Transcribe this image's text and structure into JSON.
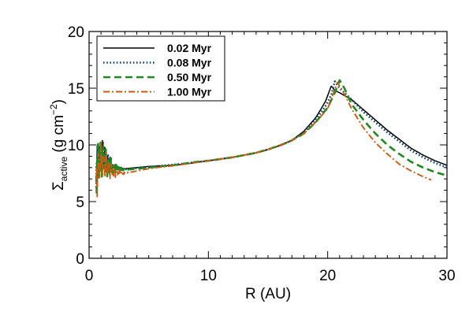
{
  "chart_data": {
    "type": "line",
    "xlabel": "R (AU)",
    "ylabel": {
      "main": "Σ",
      "sub": "active",
      "unit_pre": " (g cm",
      "unit_sup": "−2",
      "unit_post": ")"
    },
    "xlim": [
      0,
      30
    ],
    "ylim": [
      0,
      20
    ],
    "xticks": [
      0,
      10,
      20,
      30
    ],
    "yticks": [
      0,
      5,
      10,
      15,
      20
    ],
    "grid": false,
    "legend_position": "top-left",
    "series": [
      {
        "name": "0.02 Myr",
        "color": "#000000",
        "dash": "solid",
        "noise": {
          "start": 0.6,
          "end": 3.0,
          "amp": 2.2,
          "phase": 0.3
        },
        "points": [
          [
            0.6,
            7.6
          ],
          [
            1.0,
            9.4
          ],
          [
            1.5,
            8.6
          ],
          [
            2,
            8.1
          ],
          [
            3,
            7.9
          ],
          [
            4,
            8.0
          ],
          [
            5,
            8.1
          ],
          [
            6,
            8.15
          ],
          [
            7,
            8.2
          ],
          [
            8,
            8.3
          ],
          [
            9,
            8.45
          ],
          [
            10,
            8.6
          ],
          [
            11,
            8.75
          ],
          [
            12,
            8.9
          ],
          [
            13,
            9.1
          ],
          [
            14,
            9.3
          ],
          [
            15,
            9.6
          ],
          [
            16,
            9.95
          ],
          [
            17,
            10.4
          ],
          [
            18,
            11.2
          ],
          [
            19,
            12.4
          ],
          [
            19.8,
            13.8
          ],
          [
            20.3,
            15.2
          ],
          [
            20.6,
            14.8
          ],
          [
            21,
            14.6
          ],
          [
            22,
            14.0
          ],
          [
            23,
            13.1
          ],
          [
            24,
            12.2
          ],
          [
            25,
            11.3
          ],
          [
            26,
            10.5
          ],
          [
            27,
            9.7
          ],
          [
            28,
            9.1
          ],
          [
            29,
            8.6
          ],
          [
            30,
            8.2
          ]
        ]
      },
      {
        "name": "0.08 Myr",
        "color": "#10436e",
        "dash": "dotted",
        "noise": {
          "start": 0.6,
          "end": 3.2,
          "amp": 2.4,
          "phase": 1.1
        },
        "points": [
          [
            0.6,
            7.7
          ],
          [
            1.0,
            9.2
          ],
          [
            1.5,
            8.5
          ],
          [
            2,
            8.0
          ],
          [
            3,
            7.85
          ],
          [
            4,
            7.95
          ],
          [
            5,
            8.05
          ],
          [
            6,
            8.15
          ],
          [
            7,
            8.25
          ],
          [
            8,
            8.35
          ],
          [
            9,
            8.5
          ],
          [
            10,
            8.6
          ],
          [
            11,
            8.75
          ],
          [
            12,
            8.9
          ],
          [
            13,
            9.1
          ],
          [
            14,
            9.3
          ],
          [
            15,
            9.6
          ],
          [
            16,
            9.95
          ],
          [
            17,
            10.4
          ],
          [
            18,
            11.1
          ],
          [
            19,
            12.2
          ],
          [
            19.8,
            13.4
          ],
          [
            20.3,
            14.4
          ],
          [
            20.6,
            15.6
          ],
          [
            21,
            15.0
          ],
          [
            22,
            14.0
          ],
          [
            23,
            12.9
          ],
          [
            24,
            12.0
          ],
          [
            25,
            11.1
          ],
          [
            26,
            10.3
          ],
          [
            27,
            9.5
          ],
          [
            28,
            8.9
          ],
          [
            29,
            8.4
          ],
          [
            30,
            8.0
          ]
        ]
      },
      {
        "name": "0.50 Myr",
        "color": "#1e8a1e",
        "dash": "dashed",
        "noise": {
          "start": 0.6,
          "end": 3.4,
          "amp": 2.5,
          "phase": 2.2
        },
        "points": [
          [
            0.6,
            7.5
          ],
          [
            1.0,
            9.0
          ],
          [
            1.5,
            8.3
          ],
          [
            2,
            7.9
          ],
          [
            3,
            7.8
          ],
          [
            4,
            7.9
          ],
          [
            5,
            8.0
          ],
          [
            6,
            8.1
          ],
          [
            7,
            8.2
          ],
          [
            8,
            8.35
          ],
          [
            9,
            8.5
          ],
          [
            10,
            8.6
          ],
          [
            11,
            8.75
          ],
          [
            12,
            8.9
          ],
          [
            13,
            9.1
          ],
          [
            14,
            9.3
          ],
          [
            15,
            9.6
          ],
          [
            16,
            9.95
          ],
          [
            17,
            10.4
          ],
          [
            18,
            11.0
          ],
          [
            19,
            12.0
          ],
          [
            20,
            13.3
          ],
          [
            20.6,
            14.6
          ],
          [
            21.0,
            15.7
          ],
          [
            21.4,
            15.0
          ],
          [
            22,
            13.6
          ],
          [
            23,
            12.2
          ],
          [
            24,
            11.0
          ],
          [
            25,
            10.0
          ],
          [
            26,
            9.2
          ],
          [
            27,
            8.5
          ],
          [
            28,
            8.0
          ],
          [
            29,
            7.6
          ],
          [
            30,
            7.3
          ]
        ]
      },
      {
        "name": "1.00 Myr",
        "color": "#cc5a10",
        "dash": "dashdot",
        "noise": {
          "start": 0.6,
          "end": 3.6,
          "amp": 2.3,
          "phase": 3.4
        },
        "points": [
          [
            0.6,
            7.3
          ],
          [
            1.0,
            8.7
          ],
          [
            1.5,
            8.1
          ],
          [
            2,
            7.6
          ],
          [
            3,
            7.5
          ],
          [
            4,
            7.7
          ],
          [
            5,
            7.9
          ],
          [
            6,
            8.05
          ],
          [
            7,
            8.15
          ],
          [
            8,
            8.3
          ],
          [
            9,
            8.45
          ],
          [
            10,
            8.6
          ],
          [
            11,
            8.75
          ],
          [
            12,
            8.9
          ],
          [
            13,
            9.1
          ],
          [
            14,
            9.3
          ],
          [
            15,
            9.6
          ],
          [
            16,
            9.95
          ],
          [
            17,
            10.4
          ],
          [
            18,
            11.0
          ],
          [
            19,
            12.0
          ],
          [
            20,
            13.2
          ],
          [
            20.5,
            14.6
          ],
          [
            20.8,
            15.5
          ],
          [
            21.2,
            14.9
          ],
          [
            22,
            13.2
          ],
          [
            23,
            11.5
          ],
          [
            24,
            10.2
          ],
          [
            25,
            9.2
          ],
          [
            26,
            8.3
          ],
          [
            27,
            7.7
          ],
          [
            28,
            7.2
          ],
          [
            28.7,
            6.9
          ]
        ]
      }
    ]
  }
}
